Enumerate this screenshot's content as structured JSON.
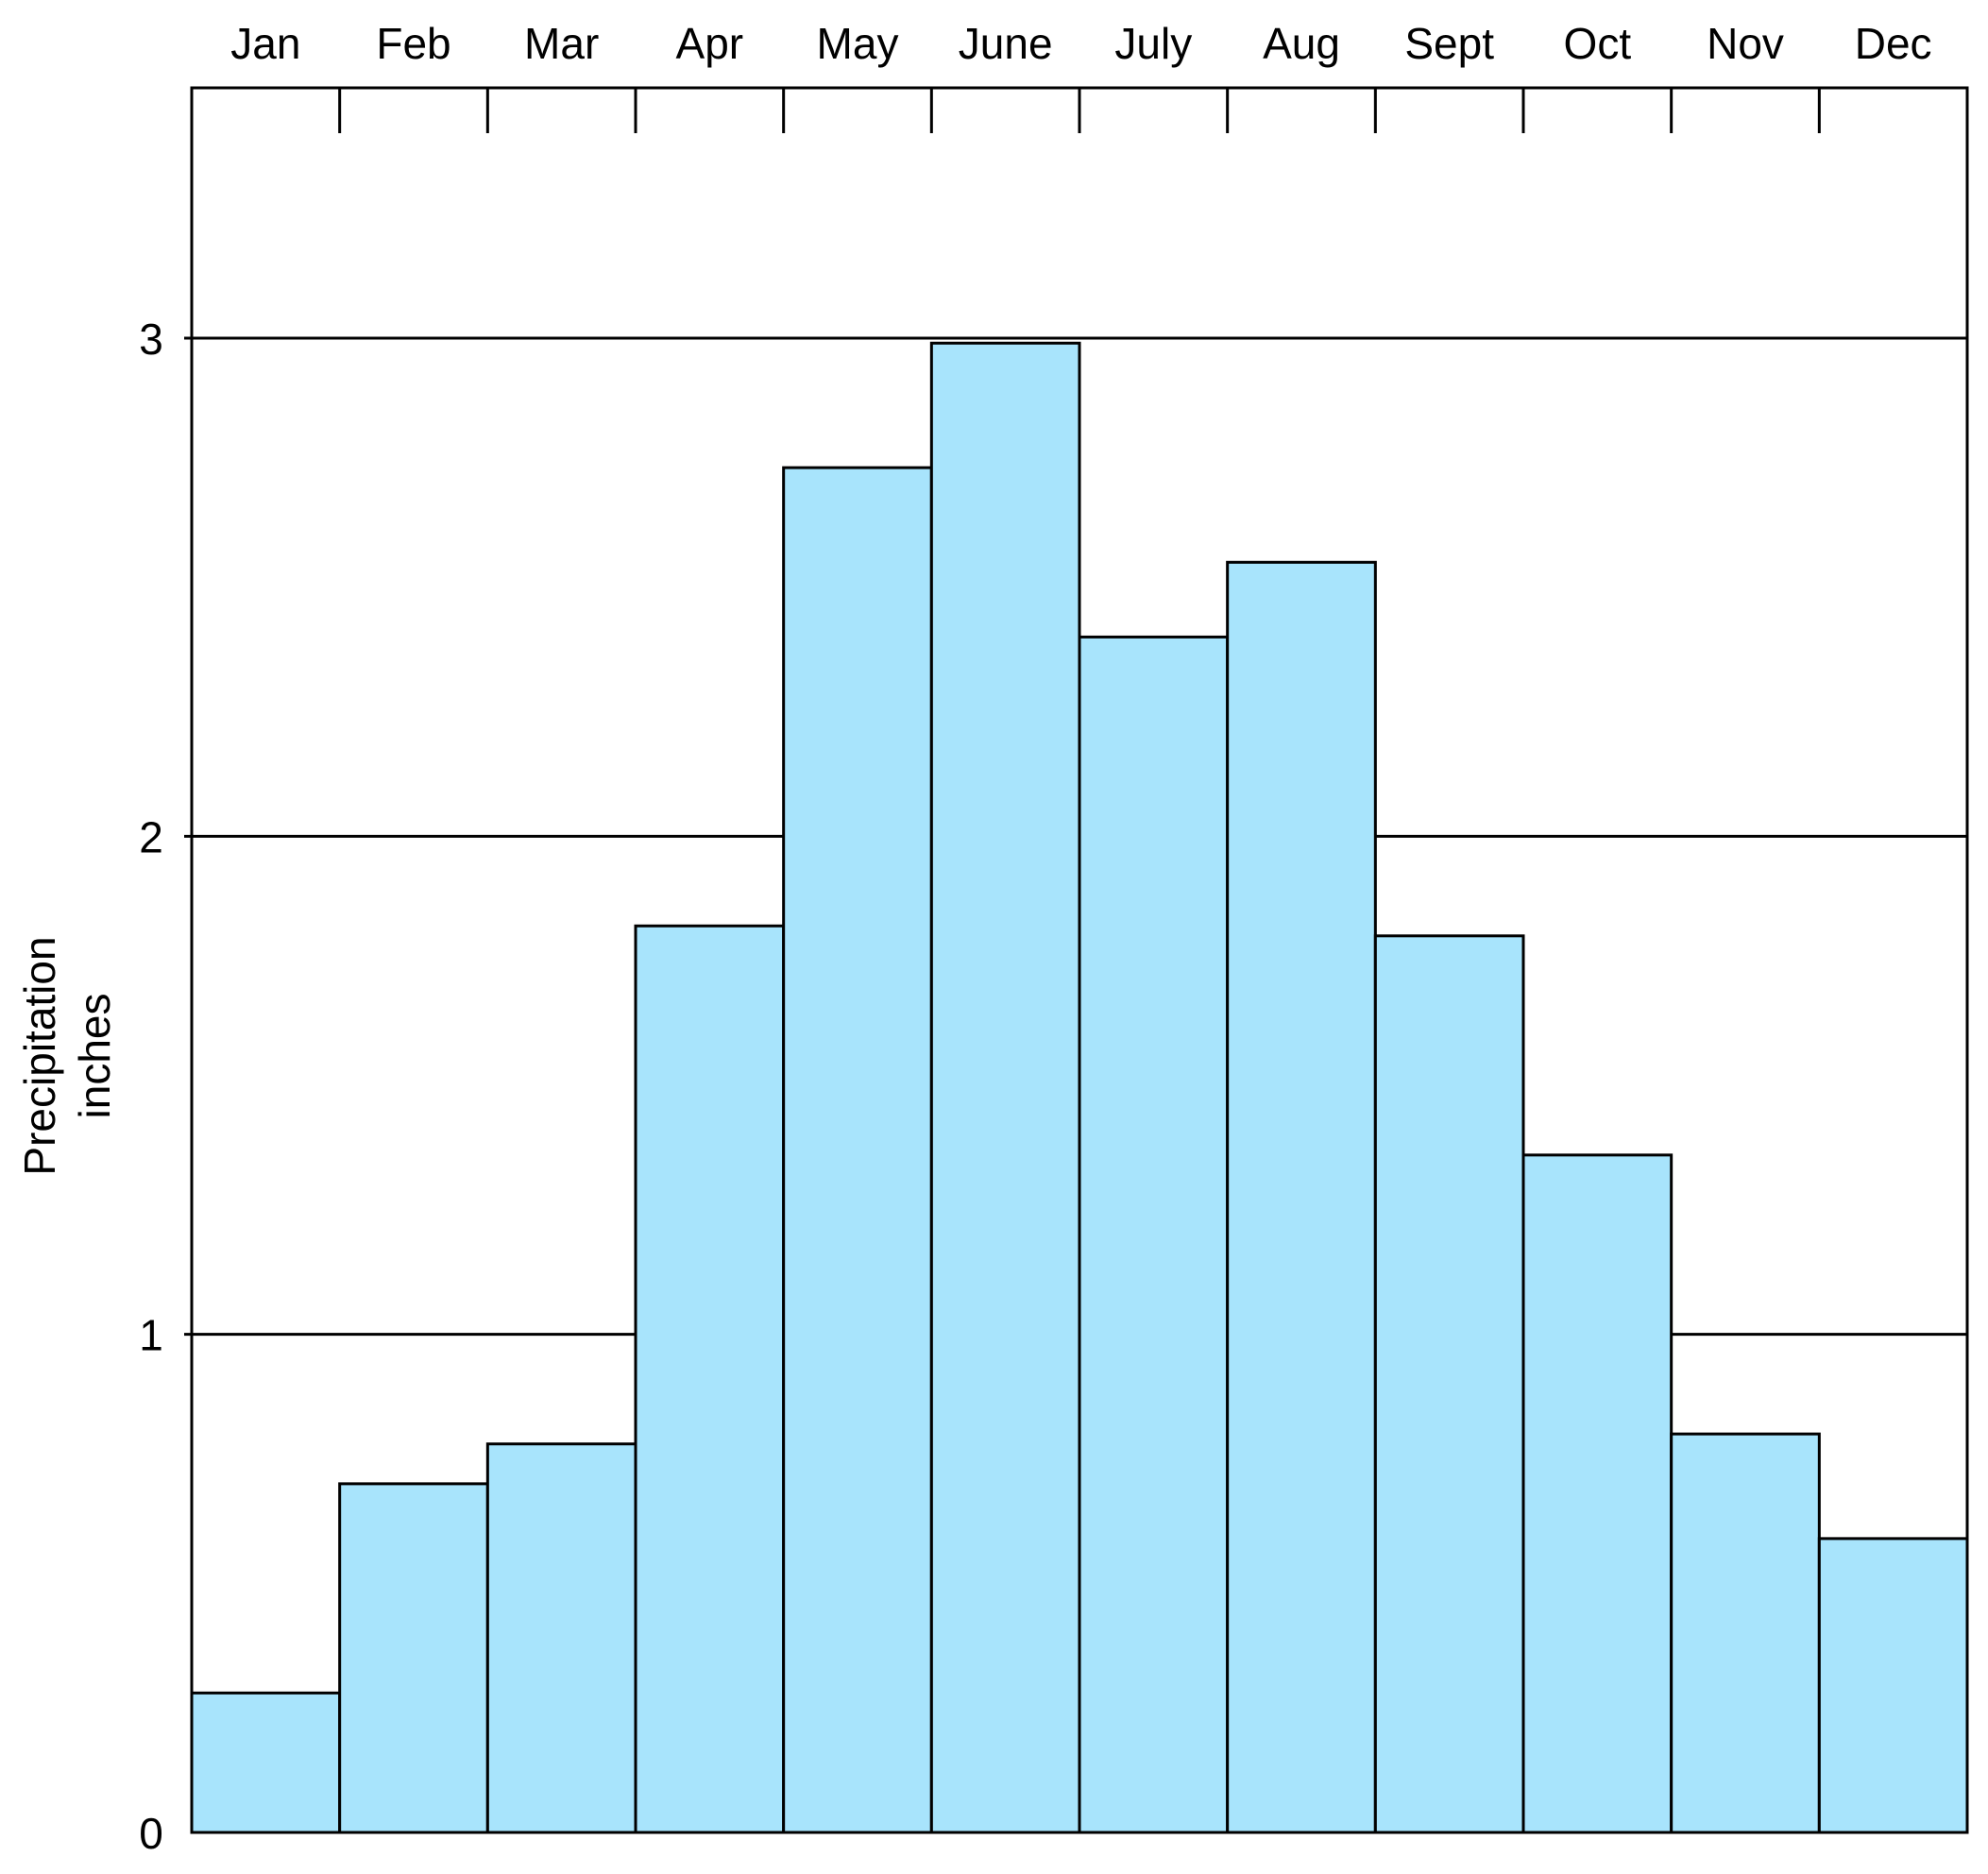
{
  "chart_data": {
    "type": "bar",
    "title": "",
    "xlabel": "",
    "ylabel": "Precipitation inches",
    "ylabel_lines": [
      "Precipitation",
      "inches"
    ],
    "categories": [
      "Jan",
      "Feb",
      "Mar",
      "Apr",
      "May",
      "June",
      "July",
      "Aug",
      "Sept",
      "Oct",
      "Nov",
      "Dec"
    ],
    "values": [
      0.28,
      0.7,
      0.78,
      1.82,
      2.74,
      2.99,
      2.4,
      2.55,
      1.8,
      1.36,
      0.8,
      0.59
    ],
    "ylim": [
      0,
      3.5
    ],
    "yticks": [
      0,
      1,
      2,
      3
    ],
    "ytick_labels": [
      "0",
      "1",
      "2",
      "3"
    ],
    "category_axis_position": "top",
    "grid": true,
    "bar_color": "#a8e4fc",
    "outline_color": "#000000"
  }
}
